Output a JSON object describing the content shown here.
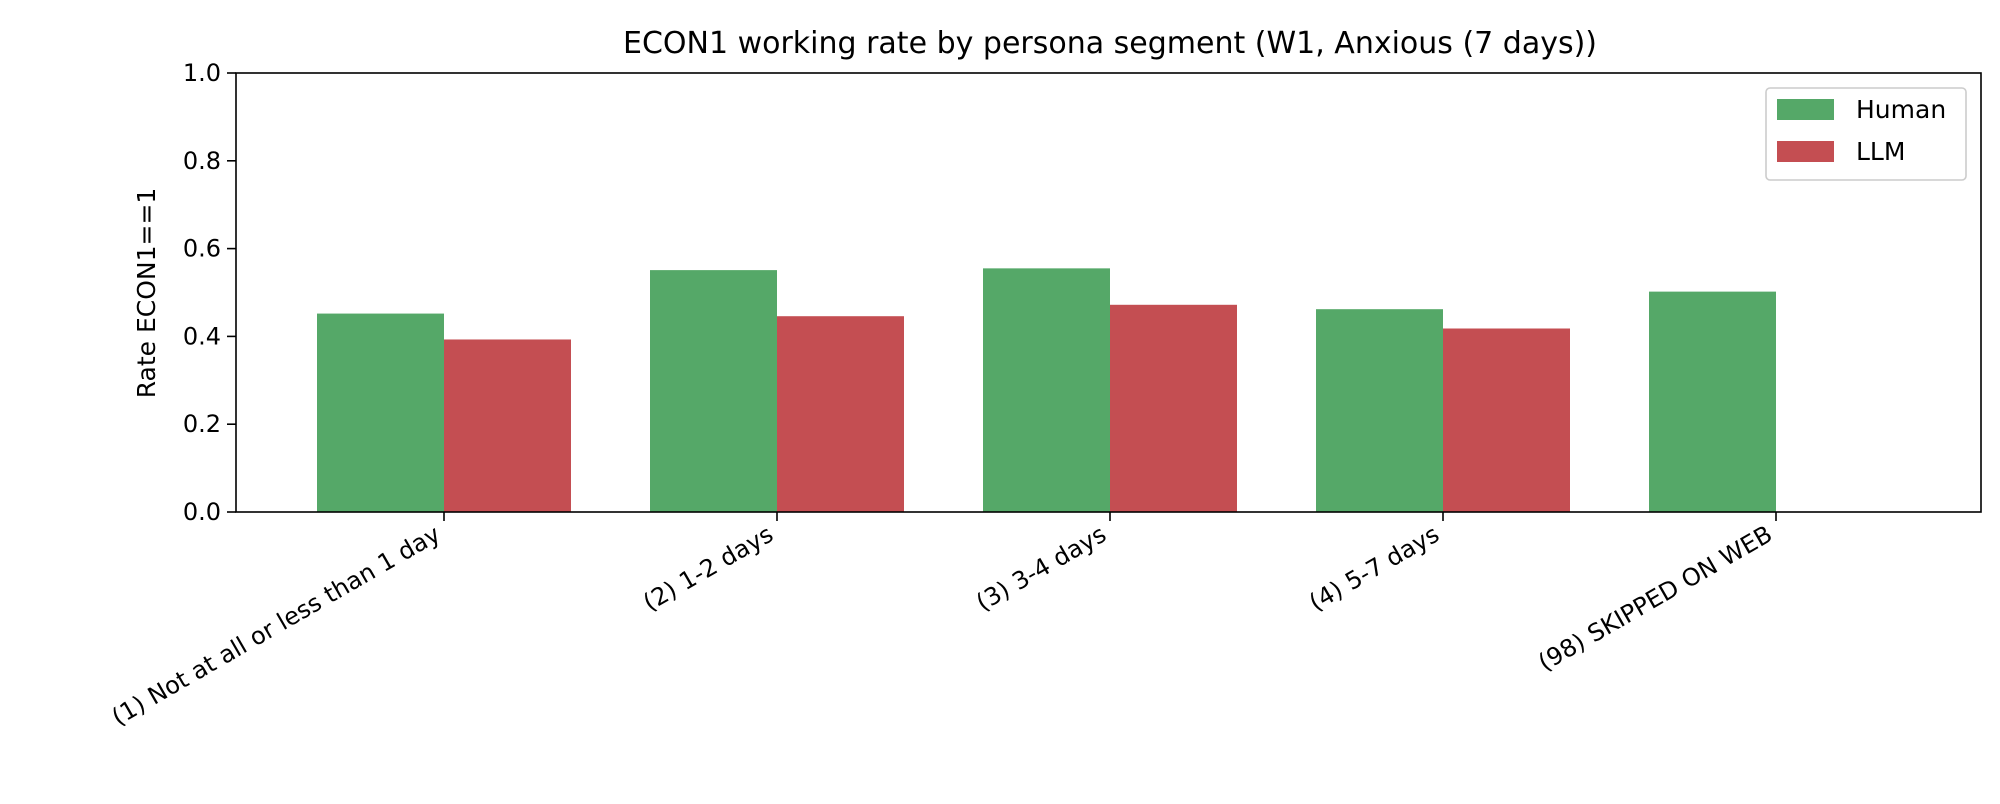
{
  "chart_data": {
    "type": "bar",
    "title": "ECON1 working rate by persona segment (W1, Anxious (7 days))",
    "xlabel": "",
    "ylabel": "Rate ECON1==1",
    "ylim": [
      0,
      1.0
    ],
    "yticks": [
      "0.0",
      "0.2",
      "0.4",
      "0.6",
      "0.8",
      "1.0"
    ],
    "categories": [
      "(1) Not at all or less than 1 day",
      "(2) 1-2 days",
      "(3) 3-4 days",
      "(4) 5-7 days",
      "(98) SKIPPED ON WEB"
    ],
    "series": [
      {
        "name": "Human",
        "color": "#55a868",
        "values": [
          0.452,
          0.551,
          0.555,
          0.462,
          0.502
        ]
      },
      {
        "name": "LLM",
        "color": "#c44e52",
        "values": [
          0.393,
          0.446,
          0.472,
          0.418,
          null
        ]
      }
    ],
    "grid": false,
    "legend_position": "top-right"
  }
}
